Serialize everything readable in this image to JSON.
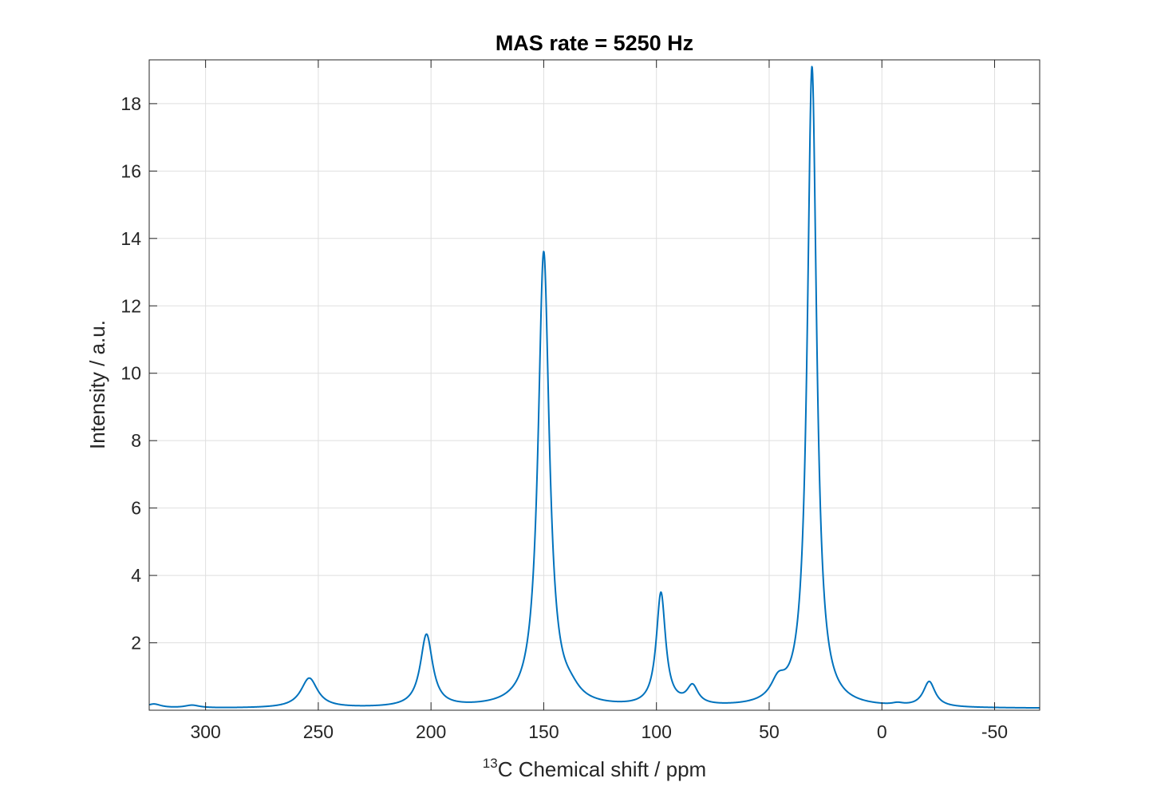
{
  "chart_data": {
    "type": "line",
    "title": "MAS rate = 5250 Hz",
    "xlabel": {
      "superscript": "13",
      "text": "C Chemical shift / ppm"
    },
    "ylabel": "Intensity / a.u.",
    "xlim": [
      325,
      -70
    ],
    "ylim": [
      0,
      19.3
    ],
    "x_reversed": true,
    "grid": true,
    "line_color": "#0072BD",
    "x_ticks": [
      300,
      250,
      200,
      150,
      100,
      50,
      0,
      -50
    ],
    "y_ticks": [
      2,
      4,
      6,
      8,
      10,
      12,
      14,
      16,
      18
    ],
    "series": [
      {
        "baseline": 0.05,
        "peaks": [
          {
            "center": 323,
            "height": 0.12,
            "width": 4
          },
          {
            "center": 306,
            "height": 0.08,
            "width": 4
          },
          {
            "center": 254,
            "height": 0.88,
            "width": 4.5
          },
          {
            "center": 202,
            "height": 2.15,
            "width": 3.3
          },
          {
            "center": 150,
            "height": 13.5,
            "width": 3.0
          },
          {
            "center": 138,
            "height": 0.25,
            "width": 5
          },
          {
            "center": 98,
            "height": 3.35,
            "width": 2.5
          },
          {
            "center": 84,
            "height": 0.55,
            "width": 3
          },
          {
            "center": 46,
            "height": 0.55,
            "width": 4
          },
          {
            "center": 31,
            "height": 19.0,
            "width": 2.5
          },
          {
            "center": -7,
            "height": 0.06,
            "width": 3
          },
          {
            "center": -21,
            "height": 0.75,
            "width": 3.2
          }
        ]
      }
    ]
  }
}
